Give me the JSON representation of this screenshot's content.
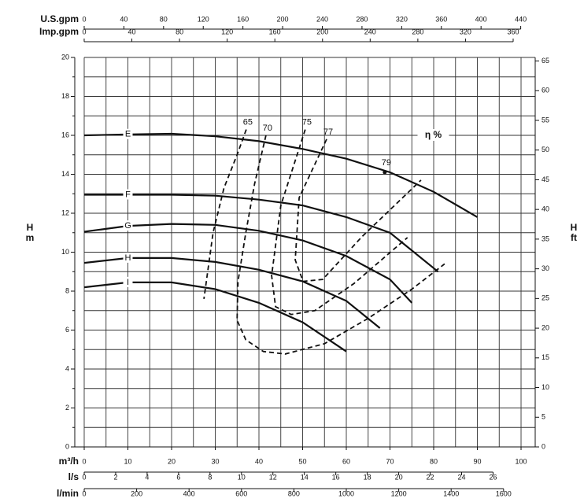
{
  "chart_data": {
    "type": "line",
    "xlabel": "m³/h",
    "ylabel_lines": [
      "H",
      "m"
    ],
    "y2label_lines": [
      "H",
      "ft"
    ],
    "xlim": [
      -2.16,
      103.24
    ],
    "xticks": [
      0,
      10,
      20,
      30,
      40,
      50,
      60,
      70,
      80,
      90,
      100
    ],
    "x_minor_ticks": [
      5,
      15,
      25,
      35,
      45,
      55,
      65,
      75,
      85,
      95
    ],
    "ylim": [
      0,
      20
    ],
    "yticks": [
      0,
      2,
      4,
      6,
      8,
      10,
      12,
      14,
      16,
      18,
      20
    ],
    "y_minor_ticks": [
      1,
      3,
      5,
      7,
      9,
      11,
      13,
      15,
      17,
      19
    ],
    "y2lim": [
      0,
      65.6
    ],
    "y2ticks": [
      0,
      5,
      10,
      15,
      20,
      25,
      30,
      35,
      40,
      45,
      50,
      55,
      60,
      65
    ],
    "grid": true,
    "extra_x_axes": [
      {
        "label": "U.S.gpm",
        "position": "top",
        "lim": [
          -9.5,
          454.6
        ],
        "ticks": [
          0,
          40,
          80,
          120,
          160,
          200,
          240,
          280,
          320,
          360,
          400,
          440
        ]
      },
      {
        "label": "Imp.gpm",
        "position": "top",
        "lim": [
          -7.9,
          378.5
        ],
        "ticks": [
          0,
          40,
          80,
          120,
          160,
          200,
          240,
          280,
          320,
          360
        ]
      },
      {
        "label": "l/s",
        "position": "bottom",
        "lim": [
          -0.6,
          28.68
        ],
        "ticks": [
          0,
          2,
          4,
          6,
          8,
          10,
          12,
          14,
          16,
          18,
          20,
          22,
          24,
          26
        ]
      },
      {
        "label": "l/min",
        "position": "bottom",
        "lim": [
          -36,
          1720.7
        ],
        "ticks": [
          0,
          200,
          400,
          600,
          800,
          1000,
          1200,
          1400,
          1600
        ]
      }
    ],
    "series": [
      {
        "name": "E",
        "color": "#111111",
        "x": [
          0,
          10,
          20,
          30,
          40,
          50,
          60,
          70,
          80,
          90
        ],
        "values": [
          16.0,
          16.05,
          16.08,
          15.95,
          15.7,
          15.3,
          14.8,
          14.1,
          13.1,
          11.8
        ]
      },
      {
        "name": "F",
        "color": "#111111",
        "x": [
          0,
          10,
          20,
          30,
          40,
          50,
          60,
          70,
          81
        ],
        "values": [
          12.95,
          12.95,
          12.95,
          12.9,
          12.7,
          12.4,
          11.8,
          11.0,
          9.0
        ]
      },
      {
        "name": "G",
        "color": "#111111",
        "x": [
          0,
          10,
          20,
          30,
          40,
          50,
          60,
          70,
          75
        ],
        "values": [
          11.05,
          11.35,
          11.45,
          11.4,
          11.1,
          10.6,
          9.8,
          8.6,
          7.4
        ]
      },
      {
        "name": "H",
        "color": "#111111",
        "x": [
          0,
          10,
          20,
          30,
          40,
          50,
          60,
          67.7
        ],
        "values": [
          9.45,
          9.7,
          9.7,
          9.5,
          9.1,
          8.5,
          7.5,
          6.1
        ]
      },
      {
        "name": "I",
        "color": "#111111",
        "x": [
          0,
          10,
          20,
          30,
          40,
          50,
          60
        ],
        "values": [
          8.2,
          8.45,
          8.45,
          8.1,
          7.4,
          6.4,
          4.9
        ]
      }
    ],
    "efficiency_label": "η %",
    "efficiency_curves": [
      {
        "name": "65",
        "color": "#111111",
        "x": [
          37.1,
          35,
          32,
          29.5,
          27.4
        ],
        "values": [
          16.3,
          15,
          13.3,
          11,
          7.6
        ]
      },
      {
        "name": "70",
        "color": "#111111",
        "x": [
          41.6,
          39,
          37,
          35.2,
          35,
          37,
          41,
          46,
          55,
          65,
          75,
          82.5
        ],
        "values": [
          16,
          13.5,
          11,
          8.5,
          6.5,
          5.5,
          4.9,
          4.77,
          5.3,
          6.6,
          8.1,
          9.4
        ]
      },
      {
        "name": "75",
        "color": "#111111",
        "x": [
          50.6,
          45,
          42.9,
          43.8,
          47.4,
          52.8,
          61.8,
          74
        ],
        "values": [
          16.3,
          12.4,
          8.8,
          7.2,
          6.8,
          7.0,
          8.4,
          10.75
        ]
      },
      {
        "name": "77",
        "color": "#111111",
        "x": [
          55.5,
          49.2,
          48.3,
          50.1,
          54.6,
          63.6,
          77.1
        ],
        "values": [
          15.8,
          12.8,
          9.6,
          8.5,
          8.6,
          10.8,
          13.7
        ]
      }
    ],
    "efficiency_points": [
      {
        "name": "79",
        "x": 68.8,
        "value": 14.1
      }
    ]
  }
}
